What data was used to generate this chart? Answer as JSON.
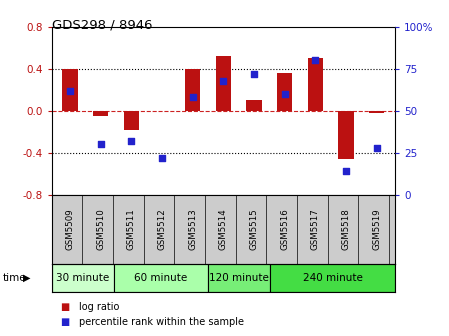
{
  "title": "GDS298 / 8946",
  "samples": [
    "GSM5509",
    "GSM5510",
    "GSM5511",
    "GSM5512",
    "GSM5513",
    "GSM5514",
    "GSM5515",
    "GSM5516",
    "GSM5517",
    "GSM5518",
    "GSM5519"
  ],
  "log_ratio": [
    0.4,
    -0.05,
    -0.18,
    0.0,
    0.4,
    0.52,
    0.1,
    0.36,
    0.5,
    -0.46,
    -0.02
  ],
  "percentile": [
    62,
    30,
    32,
    22,
    58,
    68,
    72,
    60,
    80,
    14,
    28
  ],
  "bar_color": "#bb1111",
  "dot_color": "#2222cc",
  "ylim_left": [
    -0.8,
    0.8
  ],
  "ylim_right": [
    0,
    100
  ],
  "yticks_left": [
    -0.8,
    -0.4,
    0.0,
    0.4,
    0.8
  ],
  "yticks_right": [
    0,
    25,
    50,
    75,
    100
  ],
  "ytick_labels_right": [
    "0",
    "25",
    "50",
    "75",
    "100%"
  ],
  "hlines": [
    0.4,
    0.0,
    -0.4
  ],
  "hline_styles": [
    "dotted",
    "dashed",
    "dotted"
  ],
  "hline_colors": [
    "black",
    "#cc2222",
    "black"
  ],
  "time_groups": [
    {
      "label": "30 minute",
      "start": 0,
      "end": 2,
      "color": "#ccffcc"
    },
    {
      "label": "60 minute",
      "start": 2,
      "end": 5,
      "color": "#aaffaa"
    },
    {
      "label": "120 minute",
      "start": 5,
      "end": 7,
      "color": "#77ee77"
    },
    {
      "label": "240 minute",
      "start": 7,
      "end": 11,
      "color": "#44dd44"
    }
  ],
  "time_label": "time",
  "legend_log_ratio": "log ratio",
  "legend_percentile": "percentile rank within the sample",
  "bg_color": "#ffffff",
  "plot_bg": "#ffffff",
  "xtick_bg": "#cccccc",
  "spine_color": "#000000",
  "bar_width": 0.5
}
